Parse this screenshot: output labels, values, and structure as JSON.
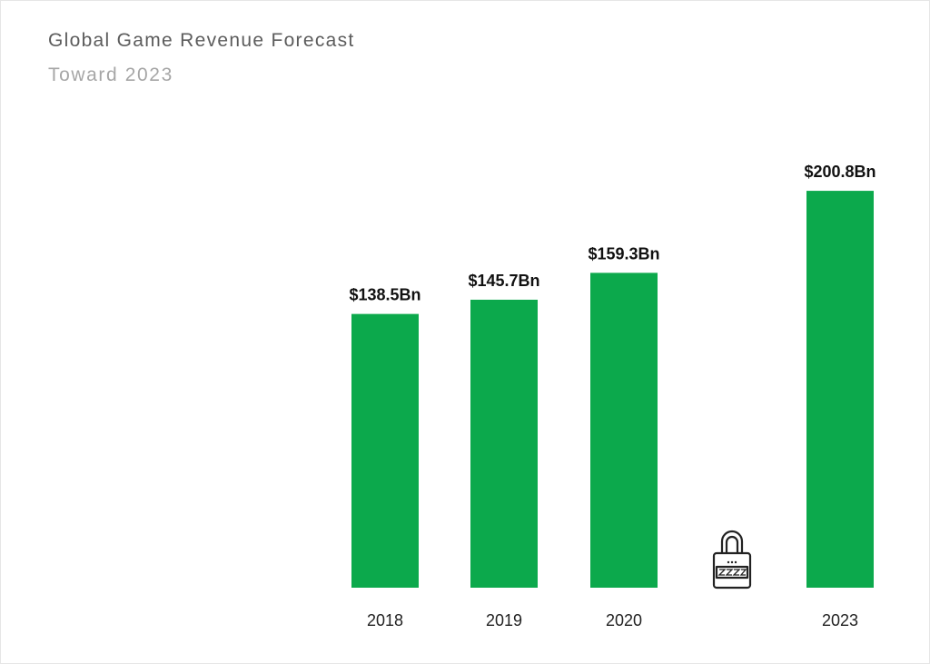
{
  "chart_data": {
    "type": "bar",
    "title": "Global Game Revenue Forecast",
    "subtitle": "Toward 2023",
    "xlabel": "",
    "ylabel": "",
    "unit": "Bn USD",
    "categories": [
      "2018",
      "2019",
      "2020",
      "",
      "2023"
    ],
    "values": [
      138.5,
      145.7,
      159.3,
      null,
      200.8
    ],
    "value_labels": [
      "$138.5Bn",
      "$145.7Bn",
      "$159.3Bn",
      "",
      "$200.8Bn"
    ],
    "locked_categories": [
      3
    ],
    "ylim": [
      0,
      216
    ],
    "colors": {
      "bar": "#0ca94c",
      "title": "#5c5c5c",
      "subtitle": "#a6a6a6"
    },
    "icons": {
      "locked": "lock-icon"
    }
  }
}
